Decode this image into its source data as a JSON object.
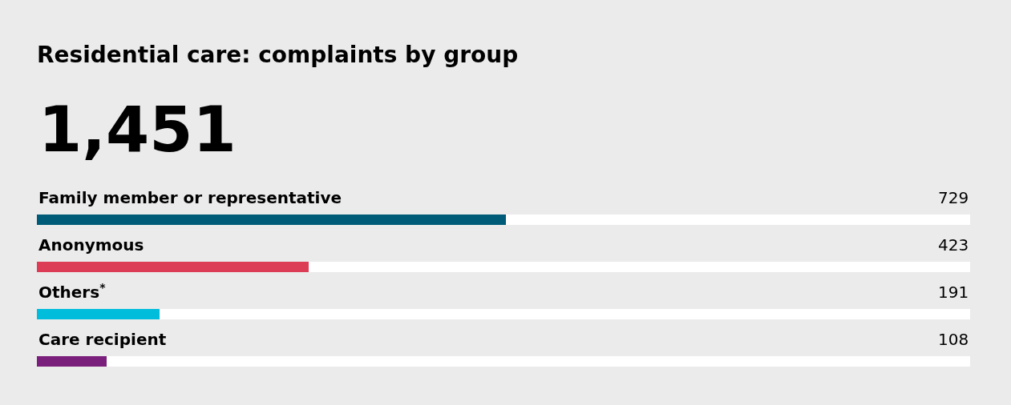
{
  "chart_data": {
    "type": "bar",
    "orientation": "horizontal",
    "title": "Residential care: complaints by group",
    "subtitle": "1,451",
    "categories": [
      "Family member or representative",
      "Anonymous",
      "Others$^{*}$",
      "Care recipient"
    ],
    "values": [
      729,
      423,
      191,
      108
    ],
    "colors": [
      "#005b78",
      "#dc3c55",
      "#00bddb",
      "#7a1f7b"
    ],
    "xlim": [
      0,
      1451
    ],
    "data_labels": true
  }
}
